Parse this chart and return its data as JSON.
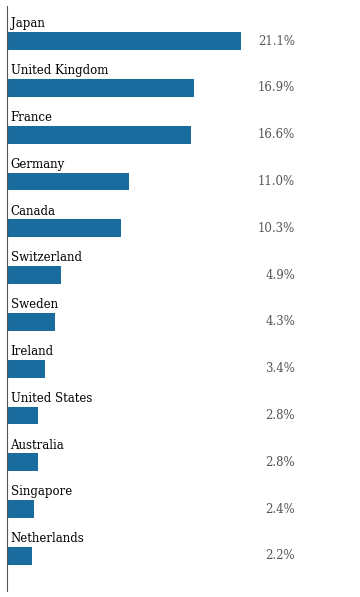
{
  "categories": [
    "Japan",
    "United Kingdom",
    "France",
    "Germany",
    "Canada",
    "Switzerland",
    "Sweden",
    "Ireland",
    "United States",
    "Australia",
    "Singapore",
    "Netherlands"
  ],
  "values": [
    21.1,
    16.9,
    16.6,
    11.0,
    10.3,
    4.9,
    4.3,
    3.4,
    2.8,
    2.8,
    2.4,
    2.2
  ],
  "labels": [
    "21.1%",
    "16.9%",
    "16.6%",
    "11.0%",
    "10.3%",
    "4.9%",
    "4.3%",
    "3.4%",
    "2.8%",
    "2.8%",
    "2.4%",
    "2.2%"
  ],
  "bar_color": "#1a6c9e",
  "background_color": "#ffffff",
  "category_fontsize": 8.5,
  "value_fontsize": 8.5,
  "xlim": [
    0,
    28
  ],
  "bar_height": 0.38,
  "left_spine_color": "#555555"
}
